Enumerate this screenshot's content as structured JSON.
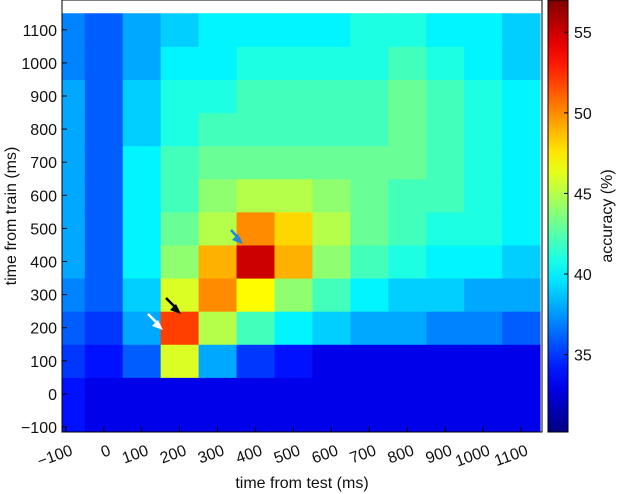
{
  "chart_data": {
    "type": "heatmap",
    "xlabel": "time from test (ms)",
    "ylabel": "time from train (ms)",
    "colorbar_label": "accuracy (%)",
    "x": [
      -100,
      0,
      100,
      200,
      300,
      400,
      500,
      600,
      700,
      800,
      900,
      1000,
      1100
    ],
    "y": [
      -100,
      0,
      100,
      200,
      300,
      400,
      500,
      600,
      700,
      800,
      900,
      1000,
      1100
    ],
    "z": [
      [
        34,
        33,
        33,
        33,
        33,
        33,
        33,
        33,
        33,
        33,
        33,
        33,
        33
      ],
      [
        34,
        33,
        33,
        33,
        33,
        33,
        33,
        33,
        33,
        33,
        33,
        33,
        33
      ],
      [
        35,
        34,
        36,
        46,
        38,
        35,
        34,
        33,
        33,
        33,
        33,
        33,
        33
      ],
      [
        36,
        35,
        38,
        52,
        45,
        42,
        40,
        39,
        38,
        38,
        37,
        37,
        36
      ],
      [
        37,
        36,
        39,
        46,
        50,
        47,
        44,
        42,
        40,
        39,
        39,
        38,
        38
      ],
      [
        38,
        36,
        40,
        44,
        49,
        55,
        49,
        44,
        42,
        41,
        40,
        40,
        39
      ],
      [
        38,
        36,
        40,
        43,
        45,
        50,
        48,
        45,
        43,
        42,
        41,
        41,
        40
      ],
      [
        38,
        36,
        40,
        42,
        44,
        45,
        45,
        44,
        43,
        42,
        42,
        41,
        40
      ],
      [
        38,
        36,
        40,
        42,
        43,
        43,
        43,
        43,
        43,
        43,
        42,
        41,
        40
      ],
      [
        38,
        36,
        39,
        41,
        42,
        42,
        42,
        42,
        42,
        43,
        42,
        41,
        40
      ],
      [
        38,
        36,
        39,
        41,
        41,
        42,
        42,
        42,
        42,
        43,
        42,
        41,
        40
      ],
      [
        37,
        36,
        38,
        40,
        40,
        41,
        41,
        41,
        41,
        42,
        41,
        40,
        39
      ],
      [
        37,
        36,
        38,
        39,
        40,
        40,
        40,
        40,
        41,
        41,
        40,
        40,
        39
      ]
    ],
    "xlim": [
      -110,
      1155
    ],
    "ylim": [
      -115,
      1190
    ],
    "xticks": [
      {
        "value": -100,
        "label": "−100"
      },
      0,
      100,
      200,
      300,
      400,
      500,
      600,
      700,
      800,
      900,
      1000,
      1100
    ],
    "yticks": [
      {
        "value": -100,
        "label": "−100"
      },
      0,
      100,
      200,
      300,
      400,
      500,
      600,
      700,
      800,
      900,
      1000,
      1100
    ],
    "zlim": [
      30.2,
      57
    ],
    "zticks": [
      35,
      40,
      45,
      50,
      55
    ],
    "colormap": "jet"
  }
}
